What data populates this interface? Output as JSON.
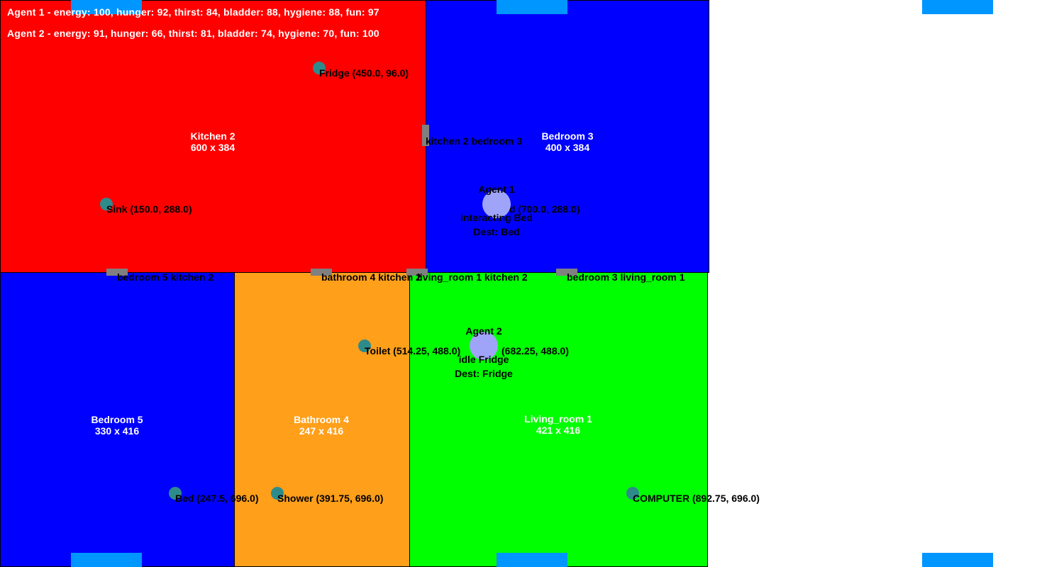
{
  "status": {
    "agent1": "Agent 1 - energy: 100, hunger: 92, thirst: 84, bladder: 88, hygiene: 88, fun: 97",
    "agent2": "Agent 2 - energy: 91, hunger: 66, thirst: 81, bladder: 74, hygiene: 70, fun: 100"
  },
  "rooms": {
    "kitchen2": {
      "name": "Kitchen 2",
      "size": "600 x 384",
      "color": "#ff0000"
    },
    "bedroom3": {
      "name": "Bedroom 3",
      "size": "400 x 384",
      "color": "#0000ff"
    },
    "bedroom5": {
      "name": "Bedroom 5",
      "size": "330 x 416",
      "color": "#0000ff"
    },
    "bathroom4": {
      "name": "Bathroom 4",
      "size": "247 x 416",
      "color": "#ff9f1a"
    },
    "living1": {
      "name": "Living_room 1",
      "size": "421 x 416",
      "color": "#00ff00"
    }
  },
  "objects": {
    "fridge": "Fridge (450.0, 96.0)",
    "sink": "Sink (150.0, 288.0)",
    "bed3": "Bed (700.0, 288.0)",
    "toilet": "Toilet (514.25, 488.0)",
    "bed5": "Bed (247.5, 696.0)",
    "shower": "Shower (391.75, 696.0)",
    "computer": "COMPUTER (892.75, 696.0)",
    "living_obj": "(682.25, 488.0)"
  },
  "doors": {
    "k2_b3": "kitchen 2 bedroom 3",
    "b5_k2": "bedroom 5 kitchen 2",
    "ba4_k2": "bathroom 4 kitchen 2",
    "lr1_k2": "living_room 1 kitchen 2",
    "b3_lr1": "bedroom 3 living_room 1"
  },
  "agents": {
    "agent1": {
      "name": "Agent 1",
      "state": "interacting Bed",
      "dest": "Dest: Bed"
    },
    "agent2": {
      "name": "Agent 2",
      "state": "idle Fridge",
      "dest": "Dest: Fridge"
    }
  },
  "colors": {
    "door": "#808080",
    "object": "#2e8b8b",
    "agent": "#a0a4f8",
    "marker": "#0096ff"
  }
}
